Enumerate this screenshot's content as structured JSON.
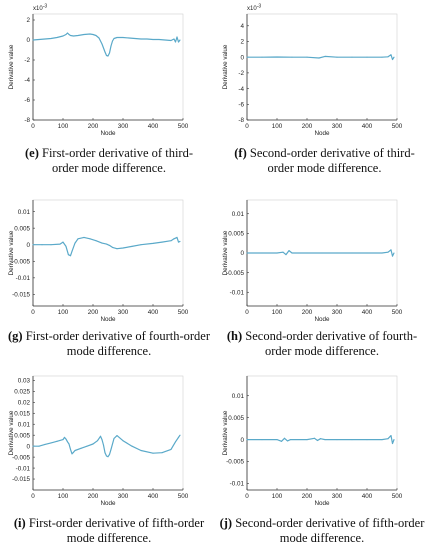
{
  "panels": [
    {
      "id": "e",
      "caption_letter": "(e)",
      "caption_text": "First-order derivative of third-order mode difference.",
      "exponent": "x10",
      "exponent_power": "-3",
      "xlabel": "Node",
      "ylabel": "Derivative value",
      "xticks": [
        "0",
        "100",
        "200",
        "300",
        "400",
        "500"
      ],
      "yticks": [
        "2",
        "0",
        "-2",
        "-4",
        "-6",
        "-8"
      ],
      "xlim": [
        0,
        500
      ],
      "ylim": [
        -8,
        2.6
      ],
      "line_color": "#5aa9c9"
    },
    {
      "id": "f",
      "caption_letter": "(f)",
      "caption_text": "Second-order derivative of third-order mode difference.",
      "exponent": "x10",
      "exponent_power": "-3",
      "xlabel": "Node",
      "ylabel": "Derivative value",
      "xticks": [
        "0",
        "100",
        "200",
        "300",
        "400",
        "500"
      ],
      "yticks": [
        "4",
        "2",
        "0",
        "-2",
        "-4",
        "-6",
        "-8"
      ],
      "xlim": [
        0,
        500
      ],
      "ylim": [
        -8,
        5.5
      ],
      "line_color": "#5aa9c9"
    },
    {
      "id": "g",
      "caption_letter": "(g)",
      "caption_text": "First-order derivative of fourth-order mode difference.",
      "exponent": "",
      "exponent_power": "",
      "xlabel": "Node",
      "ylabel": "Derivative value",
      "xticks": [
        "0",
        "100",
        "200",
        "300",
        "400",
        "500"
      ],
      "yticks": [
        "0.01",
        "0.005",
        "0",
        "-0.005",
        "-0.01",
        "-0.015"
      ],
      "xlim": [
        0,
        500
      ],
      "ylim": [
        -0.0185,
        0.0135
      ],
      "line_color": "#5aa9c9"
    },
    {
      "id": "h",
      "caption_letter": "(h)",
      "caption_text": "Second-order derivative of fourth-order mode difference.",
      "exponent": "",
      "exponent_power": "",
      "xlabel": "Node",
      "ylabel": "Derivative value",
      "xticks": [
        "0",
        "100",
        "200",
        "300",
        "400",
        "500"
      ],
      "yticks": [
        "0.01",
        "0.005",
        "0",
        "-0.005",
        "-0.01"
      ],
      "xlim": [
        0,
        500
      ],
      "ylim": [
        -0.0135,
        0.0135
      ],
      "line_color": "#5aa9c9"
    },
    {
      "id": "i",
      "caption_letter": "(i)",
      "caption_text": "First-order derivative of fifth-order mode difference.",
      "exponent": "",
      "exponent_power": "",
      "xlabel": "Node",
      "ylabel": "Derivative value",
      "xticks": [
        "0",
        "100",
        "200",
        "300",
        "400",
        "500"
      ],
      "yticks": [
        "0.03",
        "0.025",
        "0.02",
        "0.015",
        "0.01",
        "0.005",
        "0",
        "-0.005",
        "-0.01",
        "-0.015"
      ],
      "xlim": [
        0,
        500
      ],
      "ylim": [
        -0.02,
        0.032
      ],
      "line_color": "#5aa9c9"
    },
    {
      "id": "j",
      "caption_letter": "(j)",
      "caption_text": "Second-order derivative of fifth-order mode difference.",
      "exponent": "",
      "exponent_power": "",
      "xlabel": "Node",
      "ylabel": "Derivative value",
      "xticks": [
        "0",
        "100",
        "200",
        "300",
        "400",
        "500"
      ],
      "yticks": [
        "0.01",
        "0.005",
        "0",
        "-0.005",
        "-0.01"
      ],
      "xlim": [
        0,
        500
      ],
      "ylim": [
        -0.0115,
        0.0145
      ],
      "line_color": "#5aa9c9"
    }
  ],
  "chart_data": [
    {
      "type": "line",
      "panel": "e",
      "scale_note": "values in units of 10^-3",
      "x": [
        0,
        20,
        40,
        60,
        80,
        100,
        110,
        115,
        120,
        125,
        135,
        150,
        170,
        190,
        200,
        210,
        220,
        230,
        240,
        245,
        250,
        255,
        260,
        265,
        270,
        280,
        300,
        320,
        340,
        360,
        380,
        400,
        420,
        440,
        460,
        470,
        475,
        480,
        485,
        490
      ],
      "y": [
        0,
        0.05,
        0.1,
        0.15,
        0.25,
        0.4,
        0.55,
        0.7,
        0.55,
        0.45,
        0.4,
        0.45,
        0.55,
        0.6,
        0.55,
        0.45,
        0.2,
        -0.4,
        -1.2,
        -1.55,
        -1.6,
        -1.3,
        -0.6,
        -0.1,
        0.15,
        0.25,
        0.25,
        0.2,
        0.15,
        0.1,
        0.1,
        0.05,
        0.05,
        0,
        -0.05,
        0.1,
        -0.2,
        0.3,
        -0.2,
        0
      ]
    },
    {
      "type": "line",
      "panel": "f",
      "scale_note": "values in units of 10^-3",
      "x": [
        0,
        50,
        100,
        150,
        200,
        240,
        260,
        300,
        350,
        400,
        450,
        470,
        480,
        485,
        490
      ],
      "y": [
        0,
        0,
        0.02,
        0,
        0,
        -0.1,
        0.1,
        0,
        0,
        0,
        0,
        0.05,
        0.3,
        -0.3,
        0
      ]
    },
    {
      "type": "line",
      "panel": "g",
      "x": [
        0,
        30,
        60,
        90,
        100,
        110,
        118,
        125,
        130,
        140,
        150,
        170,
        190,
        210,
        230,
        245,
        255,
        265,
        280,
        300,
        330,
        360,
        400,
        430,
        460,
        470,
        480,
        485,
        490
      ],
      "y": [
        0,
        0,
        0,
        0.0002,
        0.0008,
        -0.0005,
        -0.003,
        -0.0033,
        -0.002,
        0.0005,
        0.0018,
        0.0022,
        0.0018,
        0.0012,
        0.0005,
        0.0002,
        -0.0002,
        -0.0008,
        -0.0012,
        -0.001,
        -0.0005,
        0,
        0.0004,
        0.0008,
        0.0012,
        0.0018,
        0.0022,
        0.0008,
        0.001
      ]
    },
    {
      "type": "line",
      "panel": "h",
      "x": [
        0,
        50,
        100,
        120,
        130,
        140,
        150,
        200,
        250,
        300,
        350,
        400,
        450,
        470,
        480,
        485,
        490
      ],
      "y": [
        0,
        0,
        0,
        0.0002,
        -0.0004,
        0.0006,
        0,
        0,
        0,
        0,
        0,
        0,
        0,
        0.0002,
        0.0008,
        -0.0008,
        0
      ]
    },
    {
      "type": "line",
      "panel": "i",
      "x": [
        0,
        20,
        40,
        60,
        80,
        100,
        105,
        110,
        115,
        120,
        125,
        130,
        135,
        140,
        160,
        180,
        200,
        215,
        225,
        230,
        235,
        240,
        245,
        250,
        255,
        260,
        270,
        280,
        300,
        330,
        360,
        400,
        430,
        460,
        475,
        485,
        490
      ],
      "y": [
        0,
        0,
        0.0008,
        0.0015,
        0.0022,
        0.003,
        0.004,
        0.0032,
        0.002,
        0.001,
        -0.0015,
        -0.0035,
        -0.0028,
        -0.002,
        -0.001,
        0,
        0.001,
        0.0025,
        0.0045,
        0.003,
        0.0005,
        -0.003,
        -0.0045,
        -0.0048,
        -0.0038,
        -0.0015,
        0.0035,
        0.0048,
        0.0025,
        0,
        -0.002,
        -0.0032,
        -0.003,
        -0.0015,
        0.002,
        0.004,
        0.005
      ]
    },
    {
      "type": "line",
      "panel": "j",
      "x": [
        0,
        50,
        100,
        115,
        125,
        135,
        145,
        200,
        225,
        235,
        245,
        260,
        300,
        350,
        400,
        450,
        470,
        480,
        485,
        490
      ],
      "y": [
        0,
        0,
        0,
        -0.0004,
        0.0003,
        -0.0003,
        0,
        0,
        0.0003,
        -0.0002,
        0.0002,
        0,
        0,
        0,
        0,
        0,
        0.0002,
        0.0009,
        -0.0009,
        0
      ]
    }
  ]
}
